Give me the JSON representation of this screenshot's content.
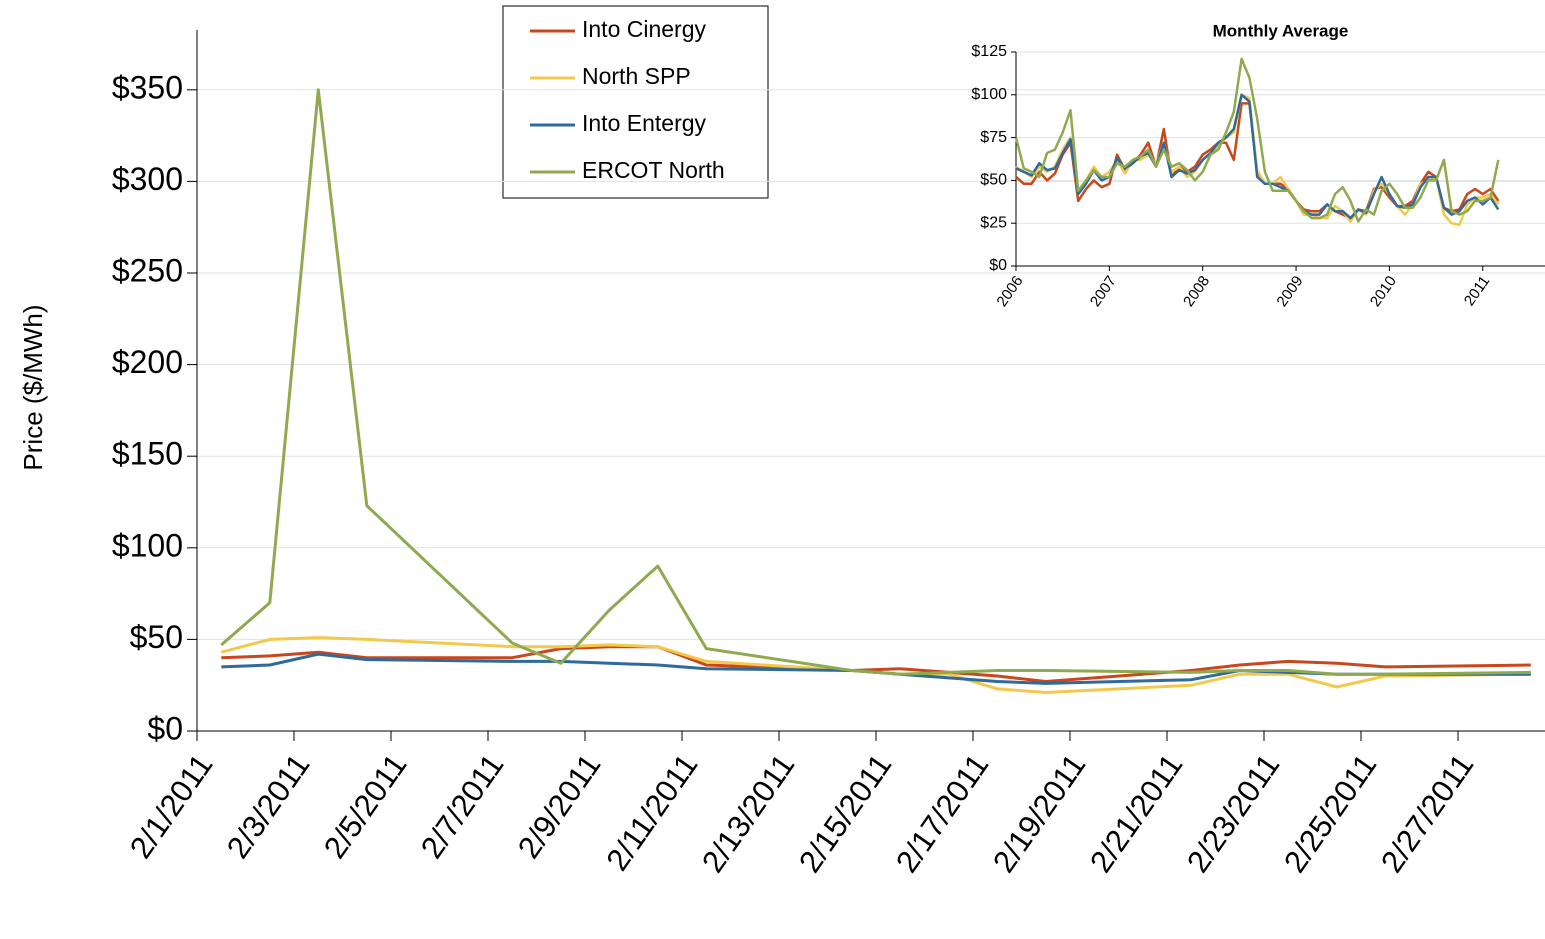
{
  "chart_data": [
    {
      "type": "line",
      "y_label": "Price ($/MWh)",
      "x": [
        "2/1/2011",
        "2/2/2011",
        "2/3/2011",
        "2/4/2011",
        "2/7/2011",
        "2/8/2011",
        "2/9/2011",
        "2/10/2011",
        "2/11/2011",
        "2/14/2011",
        "2/15/2011",
        "2/16/2011",
        "2/17/2011",
        "2/18/2011",
        "2/21/2011",
        "2/22/2011",
        "2/23/2011",
        "2/24/2011",
        "2/25/2011",
        "2/28/2011"
      ],
      "series": [
        {
          "name": "Into Cinergy",
          "color": "#c9471c",
          "values": [
            40,
            41,
            43,
            40,
            40,
            45,
            46,
            46,
            36,
            33,
            34,
            32,
            30,
            27,
            33,
            36,
            38,
            37,
            35,
            36
          ]
        },
        {
          "name": "North SPP",
          "color": "#f2c94c",
          "values": [
            43,
            50,
            51,
            50,
            46,
            46,
            47,
            46,
            38,
            33,
            31,
            31,
            23,
            21,
            25,
            31,
            31,
            24,
            30,
            31
          ]
        },
        {
          "name": "Into Entergy",
          "color": "#2f6a9c",
          "values": [
            35,
            36,
            42,
            39,
            38,
            38,
            37,
            36,
            34,
            33,
            31,
            29,
            27,
            26,
            28,
            33,
            32,
            31,
            31,
            31
          ]
        },
        {
          "name": "ERCOT North",
          "color": "#8faa4e",
          "values": [
            47,
            70,
            350,
            123,
            48,
            37,
            66,
            90,
            45,
            33,
            31,
            32,
            33,
            33,
            32,
            33,
            33,
            31,
            31,
            32
          ]
        }
      ],
      "xticks": [
        "2/1/2011",
        "2/3/2011",
        "2/5/2011",
        "2/7/2011",
        "2/9/2011",
        "2/11/2011",
        "2/13/2011",
        "2/15/2011",
        "2/17/2011",
        "2/19/2011",
        "2/21/2011",
        "2/23/2011",
        "2/25/2011",
        "2/27/2011"
      ],
      "ylim": [
        0,
        375
      ],
      "yticks": [
        {
          "value": 0,
          "label": "$0"
        },
        {
          "value": 50,
          "label": "$50"
        },
        {
          "value": 100,
          "label": "$100"
        },
        {
          "value": 150,
          "label": "$150"
        },
        {
          "value": 200,
          "label": "$200"
        },
        {
          "value": 250,
          "label": "$250"
        },
        {
          "value": 300,
          "label": "$300"
        },
        {
          "value": 350,
          "label": "$350"
        }
      ],
      "grid": true,
      "legend": "top"
    },
    {
      "type": "line",
      "title": "Monthly Average",
      "categories": [
        "2006",
        null,
        null,
        null,
        null,
        null,
        null,
        null,
        null,
        null,
        null,
        null,
        "2007",
        null,
        null,
        null,
        null,
        null,
        null,
        null,
        null,
        null,
        null,
        null,
        "2008",
        null,
        null,
        null,
        null,
        null,
        null,
        null,
        null,
        null,
        null,
        null,
        "2009",
        null,
        null,
        null,
        null,
        null,
        null,
        null,
        null,
        null,
        null,
        null,
        "2010",
        null,
        null,
        null,
        null,
        null,
        null,
        null,
        null,
        null,
        null,
        null,
        "2011",
        null,
        null
      ],
      "series": [
        {
          "color": "#c9471c",
          "values": [
            52,
            48,
            48,
            55,
            50,
            54,
            65,
            72,
            38,
            45,
            50,
            46,
            48,
            65,
            56,
            60,
            65,
            72,
            58,
            80,
            52,
            58,
            55,
            58,
            65,
            68,
            72,
            72,
            62,
            95,
            95,
            55,
            48,
            48,
            48,
            45,
            38,
            33,
            32,
            32,
            36,
            32,
            30,
            28,
            33,
            32,
            45,
            46,
            40,
            35,
            35,
            38,
            48,
            55,
            52,
            34,
            32,
            33,
            42,
            45,
            42,
            45,
            38
          ]
        },
        {
          "color": "#f2c94c",
          "values": [
            58,
            55,
            52,
            58,
            55,
            58,
            68,
            75,
            42,
            50,
            58,
            52,
            55,
            62,
            54,
            62,
            62,
            65,
            60,
            72,
            55,
            58,
            52,
            55,
            62,
            66,
            70,
            75,
            78,
            100,
            98,
            56,
            48,
            48,
            52,
            45,
            38,
            30,
            30,
            28,
            28,
            35,
            32,
            26,
            33,
            30,
            44,
            48,
            42,
            35,
            30,
            36,
            48,
            50,
            52,
            30,
            25,
            24,
            36,
            40,
            40,
            42,
            36
          ]
        },
        {
          "color": "#2f6a9c",
          "values": [
            57,
            55,
            53,
            60,
            56,
            57,
            66,
            74,
            42,
            48,
            56,
            50,
            52,
            63,
            57,
            60,
            64,
            66,
            58,
            72,
            52,
            56,
            54,
            56,
            62,
            66,
            72,
            75,
            80,
            100,
            96,
            52,
            48,
            48,
            46,
            44,
            38,
            32,
            30,
            30,
            36,
            32,
            32,
            28,
            33,
            31,
            42,
            52,
            42,
            35,
            34,
            36,
            46,
            52,
            52,
            34,
            30,
            32,
            38,
            40,
            36,
            40,
            33
          ]
        },
        {
          "color": "#8faa4e",
          "values": [
            75,
            57,
            55,
            52,
            66,
            68,
            78,
            91,
            44,
            50,
            56,
            52,
            52,
            60,
            58,
            62,
            64,
            68,
            58,
            68,
            58,
            60,
            56,
            50,
            55,
            65,
            68,
            78,
            90,
            121,
            110,
            86,
            55,
            44,
            44,
            44,
            38,
            32,
            28,
            28,
            30,
            42,
            46,
            38,
            26,
            33,
            30,
            44,
            48,
            42,
            34,
            34,
            40,
            50,
            50,
            62,
            32,
            30,
            32,
            38,
            38,
            40,
            62
          ]
        }
      ],
      "ylim": [
        0,
        125
      ],
      "yticks": [
        {
          "value": 0,
          "label": "$0"
        },
        {
          "value": 25,
          "label": "$25"
        },
        {
          "value": 50,
          "label": "$50"
        },
        {
          "value": 75,
          "label": "$75"
        },
        {
          "value": 100,
          "label": "$100"
        },
        {
          "value": 125,
          "label": "$125"
        }
      ],
      "grid": true
    }
  ]
}
